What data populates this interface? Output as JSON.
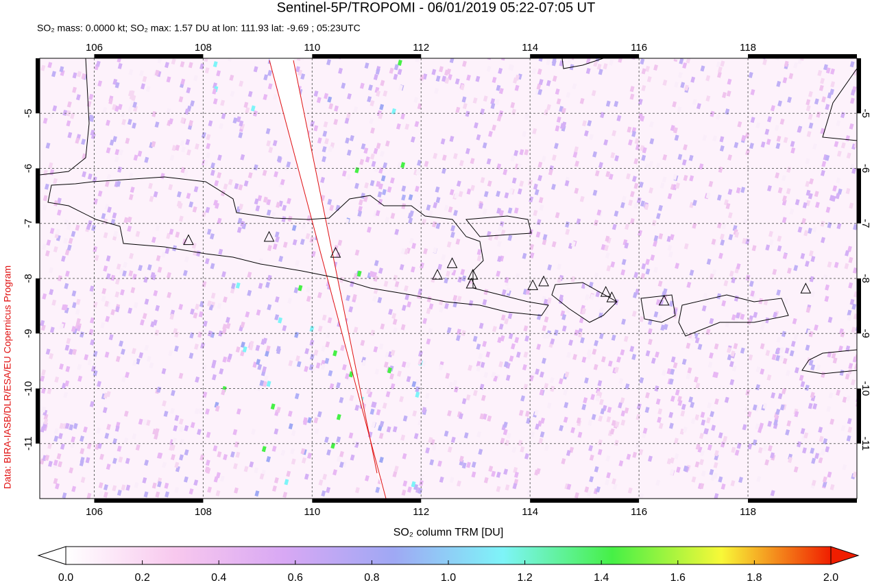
{
  "chart_data": {
    "type": "map",
    "title": "Sentinel-5P/TROPOMI - 06/01/2019 05:22-07:05 UT",
    "subtitle": "SO₂ mass: 0.0000 kt; SO₂ max: 1.57 DU at lon: 111.93 lat: -9.69 ; 05:23UTC",
    "credit": "Data: BIRA-IASB/DLR/ESA/EU Copernicus Program",
    "xlim": [
      105,
      120
    ],
    "ylim": [
      -12,
      -4
    ],
    "xticks": [
      106,
      108,
      110,
      112,
      114,
      116,
      118
    ],
    "yticks": [
      -5,
      -6,
      -7,
      -8,
      -9,
      -10,
      -11
    ],
    "grid": true,
    "volcanoes": {
      "x": [
        107.73,
        109.21,
        110.43,
        112.3,
        112.57,
        112.95,
        112.92,
        114.05,
        114.25,
        115.39,
        115.5,
        116.46,
        119.06
      ],
      "y": [
        -7.31,
        -7.25,
        -7.54,
        -7.94,
        -7.73,
        -7.94,
        -8.1,
        -8.13,
        -8.06,
        -8.25,
        -8.35,
        -8.41,
        -8.19
      ]
    },
    "colorbar": {
      "label": "SO₂ column TRM [DU]",
      "lim": [
        0,
        2
      ],
      "ticks": [
        {
          "value": 0,
          "label": "0.0"
        },
        {
          "value": 0.2,
          "label": "0.2"
        },
        {
          "value": 0.4,
          "label": "0.4"
        },
        {
          "value": 0.6,
          "label": "0.6"
        },
        {
          "value": 0.8,
          "label": "0.8"
        },
        {
          "value": 1,
          "label": "1.0"
        },
        {
          "value": 1.2,
          "label": "1.2"
        },
        {
          "value": 1.4,
          "label": "1.4"
        },
        {
          "value": 1.6,
          "label": "1.6"
        },
        {
          "value": 1.8,
          "label": "1.8"
        },
        {
          "value": 2,
          "label": "2.0"
        }
      ],
      "colors": [
        "#ffffff",
        "#f8c8ee",
        "#d8a8f4",
        "#9fa8f4",
        "#7ef4f8",
        "#46f046",
        "#f8f838",
        "#f01e00"
      ]
    }
  }
}
